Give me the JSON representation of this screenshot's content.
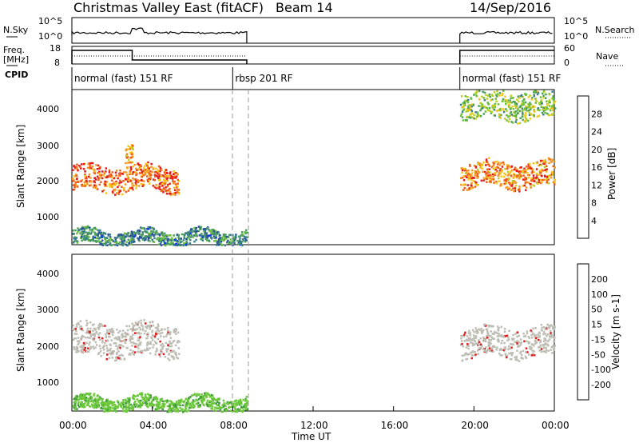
{
  "header": {
    "title": "Christmas Valley East (fitACF)",
    "beam": "Beam 14",
    "date": "14/Sep/2016"
  },
  "top_panels": {
    "nsky_label": "N.Sky",
    "nsearch_label": "N.Search",
    "nsky_ticks": [
      "10^5",
      "10^0"
    ],
    "nsky_right_ticks": [
      "10^5",
      "10^0"
    ],
    "freq_label_1": "Freq.",
    "freq_label_2": "[MHz]",
    "freq_ticks": [
      "18",
      "8"
    ],
    "nave_label": "Nave",
    "nave_ticks": [
      "60",
      "0"
    ],
    "cpid_label": "CPID"
  },
  "cpid_segments": [
    {
      "label": "normal (fast) 151 RF",
      "start_hr": 0.0,
      "end_hr": 8.0
    },
    {
      "label": "rbsp 201 RF",
      "start_hr": 8.0,
      "end_hr": 19.3
    },
    {
      "label": "normal (fast) 151 RF",
      "start_hr": 19.3,
      "end_hr": 24.0
    }
  ],
  "power_panel": {
    "ylabel": "Slant Range [km]",
    "yticks": [
      "4000",
      "3000",
      "2000",
      "1000"
    ],
    "colorbar_label": "Power [dB]",
    "colorbar_ticks": [
      "28",
      "24",
      "20",
      "16",
      "12",
      "8",
      "4"
    ],
    "colors": [
      "#0033ff",
      "#2a4fa0",
      "#3b7f8c",
      "#4aa05a",
      "#6bbf3a",
      "#b7d020",
      "#f5c518",
      "#f7941d",
      "#f25c19",
      "#e31a1c"
    ]
  },
  "velocity_panel": {
    "ylabel": "Slant Range [km]",
    "yticks": [
      "4000",
      "3000",
      "2000",
      "1000"
    ],
    "colorbar_label": "Velocity [m s-1]",
    "colorbar_ticks": [
      "200",
      "100",
      "50",
      "15",
      "-15",
      "-50",
      "-100",
      "-200"
    ],
    "colors": [
      "#1f3fa8",
      "#2f7a6e",
      "#3e9a3e",
      "#6cc83a",
      "#bdbdb4",
      "#f5c518",
      "#f7941d",
      "#f25c19",
      "#e31a1c"
    ]
  },
  "xaxis": {
    "ticks": [
      "00:00",
      "04:00",
      "08:00",
      "12:00",
      "16:00",
      "20:00",
      "00:00"
    ],
    "label": "Time UT"
  },
  "chart_data": {
    "type": "heatmap",
    "title": "Christmas Valley East (fitACF)",
    "x_range_hours": [
      0,
      24
    ],
    "y_range_km": [
      180,
      4500
    ],
    "power_bands": [
      {
        "start_hr": 0.0,
        "end_hr": 5.3,
        "range_km": [
          1700,
          2400
        ],
        "power_db": 26
      },
      {
        "start_hr": 2.6,
        "end_hr": 3.0,
        "range_km": [
          2400,
          3000
        ],
        "power_db": 22
      },
      {
        "start_hr": 19.3,
        "end_hr": 24.0,
        "range_km": [
          1800,
          2500
        ],
        "power_db": 24
      },
      {
        "start_hr": 19.3,
        "end_hr": 24.0,
        "range_km": [
          3700,
          4500
        ],
        "power_db": 14
      },
      {
        "start_hr": 0.0,
        "end_hr": 8.7,
        "range_km": [
          200,
          600
        ],
        "power_db": 8
      }
    ],
    "velocity_bands": [
      {
        "start_hr": 0.0,
        "end_hr": 5.3,
        "range_km": [
          1700,
          2600
        ],
        "velocity": 0
      },
      {
        "start_hr": 19.3,
        "end_hr": 24.0,
        "range_km": [
          1700,
          2500
        ],
        "velocity": 0
      },
      {
        "start_hr": 0.0,
        "end_hr": 8.7,
        "range_km": [
          200,
          600
        ],
        "velocity": 30
      }
    ]
  }
}
